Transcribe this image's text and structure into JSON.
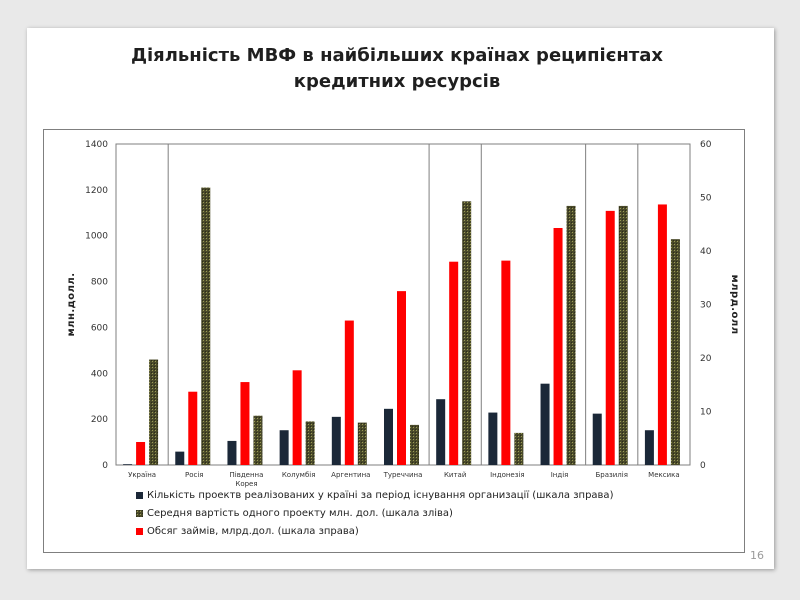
{
  "slide": {
    "title_line1": "Діяльність МВФ в  найбільших країнах реципієнтах",
    "title_line2": "кредитних ресурсів",
    "page_number": "16"
  },
  "colors": {
    "projects": "#1b2838",
    "avg_cost": "#4a4a2a",
    "loans": "#ff0000"
  },
  "chart_data": {
    "type": "bar",
    "categories": [
      "Україна",
      "Росія",
      "Південна Корея",
      "Колумбія",
      "Аргентина",
      "Туреччина",
      "Китай",
      "Індонезія",
      "Індія",
      "Бразилія",
      "Мексика"
    ],
    "series": [
      {
        "name": "Кількість проектв реалізованих у країні за період існування  организації (шкала зправа)",
        "axis": "right",
        "values": [
          0,
          2.5,
          4.5,
          6.5,
          9,
          10.5,
          12.3,
          9.8,
          15.2,
          9.6,
          6.5
        ]
      },
      {
        "name": "Середня вартість одного проекту млн. дол. (шкала зліва)",
        "axis": "left",
        "values": [
          460,
          1210,
          215,
          190,
          185,
          175,
          1150,
          140,
          1130,
          1130,
          985
        ]
      },
      {
        "name": "Обсяг займів, млрд.дол. (шкала зправа)",
        "axis": "right",
        "values": [
          4.3,
          13.7,
          15.5,
          17.7,
          27,
          32.5,
          38,
          38.2,
          44.3,
          47.5,
          48.7
        ]
      }
    ],
    "ylabel_left": "млн.долл.",
    "ylabel_right": "млрд.олл",
    "ylim_left": [
      0,
      1400
    ],
    "ylim_right": [
      0,
      60
    ],
    "yticks_left": [
      "0",
      "200",
      "400",
      "600",
      "800",
      "1000",
      "1200",
      "1400"
    ],
    "yticks_right": [
      "0",
      "10",
      "20",
      "30",
      "40",
      "50",
      "60"
    ],
    "grid": false,
    "legend_position": "bottom"
  }
}
